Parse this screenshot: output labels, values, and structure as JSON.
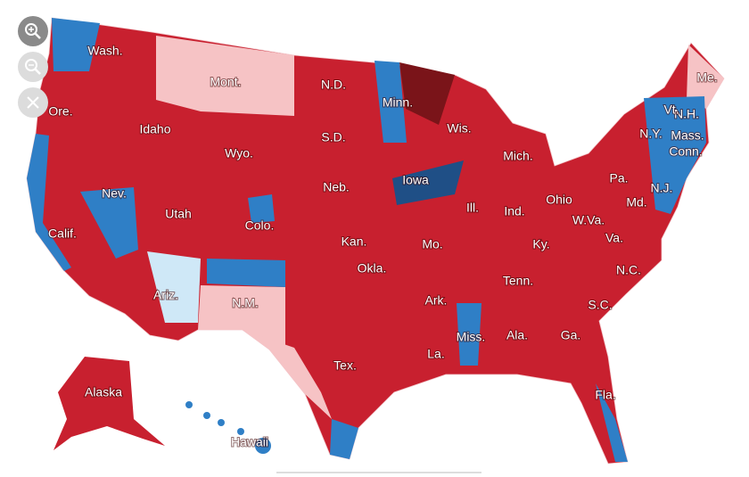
{
  "state_labels": [
    "Wash.",
    "Ore.",
    "Idaho",
    "Mont.",
    "N.D.",
    "Minn.",
    "S.D.",
    "Wyo.",
    "Wis.",
    "Nev.",
    "Calif.",
    "Utah",
    "Colo.",
    "Neb.",
    "Iowa",
    "Ill.",
    "Ind.",
    "Ohio",
    "Pa.",
    "Mich.",
    "Kan.",
    "Mo.",
    "Ky.",
    "W.Va.",
    "Va.",
    "Md.",
    "N.J.",
    "N.Y.",
    "Conn.",
    "Mass.",
    "N.H.",
    "Vt.",
    "Me.",
    "Okla.",
    "Ark.",
    "Tenn.",
    "N.C.",
    "S.C.",
    "Ga.",
    "Ala.",
    "Miss.",
    "La.",
    "Tex.",
    "N.M.",
    "Ariz.",
    "Fla.",
    "Alaska",
    "Hawaii"
  ]
}
